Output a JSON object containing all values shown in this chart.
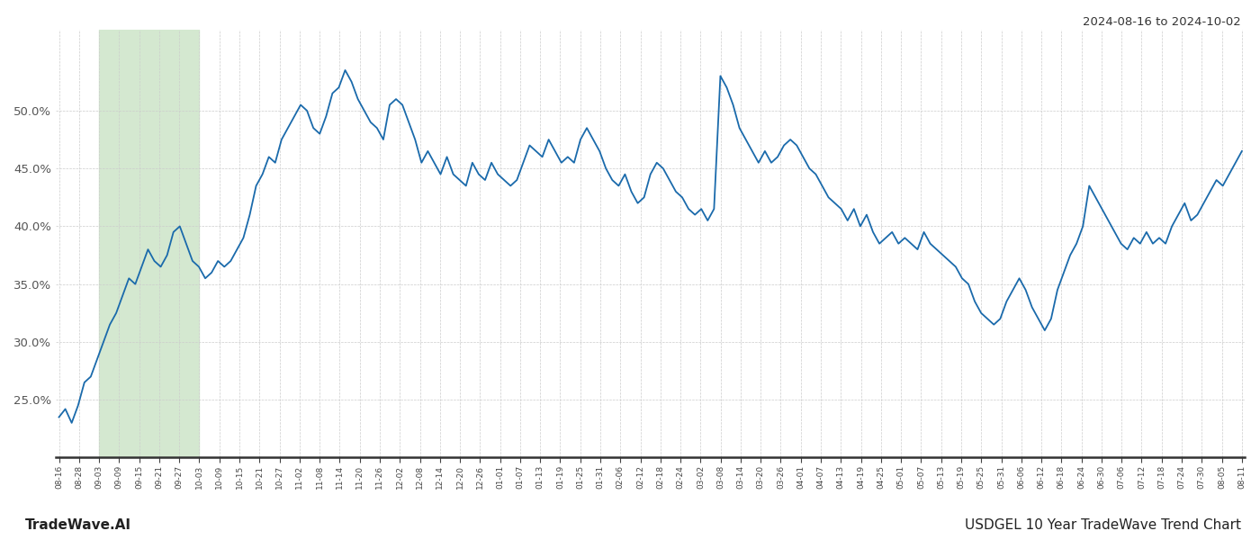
{
  "title_top_right": "2024-08-16 to 2024-10-02",
  "title_bottom_right": "USDGEL 10 Year TradeWave Trend Chart",
  "title_bottom_left": "TradeWave.AI",
  "background_color": "#ffffff",
  "line_color": "#1a6aab",
  "line_width": 1.3,
  "grid_color": "#cccccc",
  "shade_color": "#d4e8d0",
  "x_labels": [
    "08-16",
    "08-28",
    "09-03",
    "09-09",
    "09-15",
    "09-21",
    "09-27",
    "10-03",
    "10-09",
    "10-15",
    "10-21",
    "10-27",
    "11-02",
    "11-08",
    "11-14",
    "11-20",
    "11-26",
    "12-02",
    "12-08",
    "12-14",
    "12-20",
    "12-26",
    "01-01",
    "01-07",
    "01-13",
    "01-19",
    "01-25",
    "01-31",
    "02-06",
    "02-12",
    "02-18",
    "02-24",
    "03-02",
    "03-08",
    "03-14",
    "03-20",
    "03-26",
    "04-01",
    "04-07",
    "04-13",
    "04-19",
    "04-25",
    "05-01",
    "05-07",
    "05-13",
    "05-19",
    "05-25",
    "05-31",
    "06-06",
    "06-12",
    "06-18",
    "06-24",
    "06-30",
    "07-06",
    "07-12",
    "07-18",
    "07-24",
    "07-30",
    "08-05",
    "08-11"
  ],
  "y_values": [
    23.5,
    24.2,
    23.0,
    24.5,
    26.5,
    27.0,
    28.5,
    30.0,
    31.5,
    32.5,
    34.0,
    35.5,
    35.0,
    36.5,
    38.0,
    37.0,
    36.5,
    37.5,
    39.5,
    40.0,
    38.5,
    37.0,
    36.5,
    35.5,
    36.0,
    37.0,
    36.5,
    37.0,
    38.0,
    39.0,
    41.0,
    43.5,
    44.5,
    46.0,
    45.5,
    47.5,
    48.5,
    49.5,
    50.5,
    50.0,
    48.5,
    48.0,
    49.5,
    51.5,
    52.0,
    53.5,
    52.5,
    51.0,
    50.0,
    49.0,
    48.5,
    47.5,
    50.5,
    51.0,
    50.5,
    49.0,
    47.5,
    45.5,
    46.5,
    45.5,
    44.5,
    46.0,
    44.5,
    44.0,
    43.5,
    45.5,
    44.5,
    44.0,
    45.5,
    44.5,
    44.0,
    43.5,
    44.0,
    45.5,
    47.0,
    46.5,
    46.0,
    47.5,
    46.5,
    45.5,
    46.0,
    45.5,
    47.5,
    48.5,
    47.5,
    46.5,
    45.0,
    44.0,
    43.5,
    44.5,
    43.0,
    42.0,
    42.5,
    44.5,
    45.5,
    45.0,
    44.0,
    43.0,
    42.5,
    41.5,
    41.0,
    41.5,
    40.5,
    41.5,
    53.0,
    52.0,
    50.5,
    48.5,
    47.5,
    46.5,
    45.5,
    46.5,
    45.5,
    46.0,
    47.0,
    47.5,
    47.0,
    46.0,
    45.0,
    44.5,
    43.5,
    42.5,
    42.0,
    41.5,
    40.5,
    41.5,
    40.0,
    41.0,
    39.5,
    38.5,
    39.0,
    39.5,
    38.5,
    39.0,
    38.5,
    38.0,
    39.5,
    38.5,
    38.0,
    37.5,
    37.0,
    36.5,
    35.5,
    35.0,
    33.5,
    32.5,
    32.0,
    31.5,
    32.0,
    33.5,
    34.5,
    35.5,
    34.5,
    33.0,
    32.0,
    31.0,
    32.0,
    34.5,
    36.0,
    37.5,
    38.5,
    40.0,
    43.5,
    42.5,
    41.5,
    40.5,
    39.5,
    38.5,
    38.0,
    39.0,
    38.5,
    39.5,
    38.5,
    39.0,
    38.5,
    40.0,
    41.0,
    42.0,
    40.5,
    41.0,
    42.0,
    43.0,
    44.0,
    43.5,
    44.5,
    45.5,
    46.5
  ],
  "ylim_min": 20.0,
  "ylim_max": 57.0,
  "yticks": [
    25.0,
    30.0,
    35.0,
    40.0,
    45.0,
    50.0
  ],
  "shade_x_start_label": "09-03",
  "shade_x_end_label": "10-03",
  "figsize": [
    14.0,
    6.0
  ],
  "dpi": 100
}
